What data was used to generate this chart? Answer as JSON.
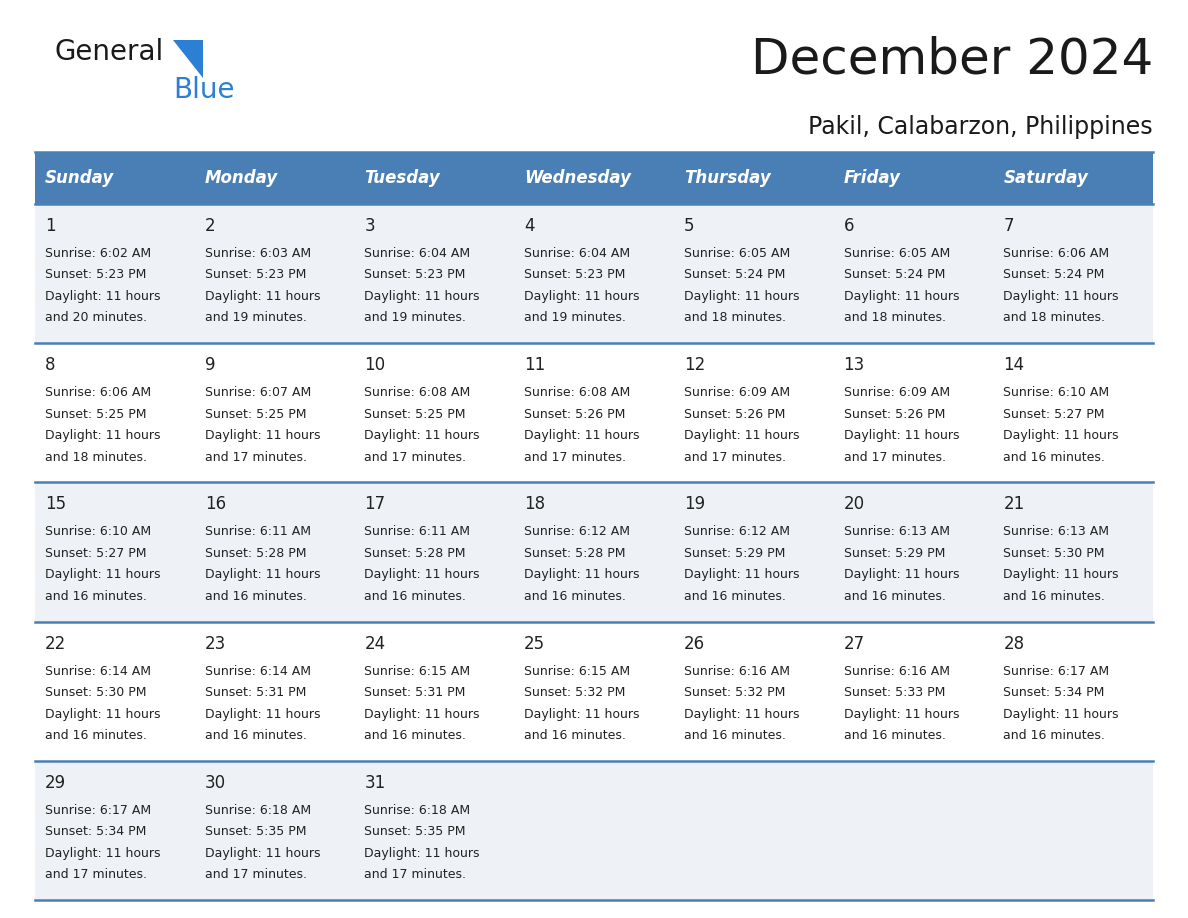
{
  "title": "December 2024",
  "subtitle": "Pakil, Calabarzon, Philippines",
  "header_color": "#4a7fb5",
  "header_text_color": "#ffffff",
  "row_odd_bg": "#eef2f7",
  "row_even_bg": "#ffffff",
  "border_color": "#4a7fb5",
  "text_color": "#222222",
  "days_of_week": [
    "Sunday",
    "Monday",
    "Tuesday",
    "Wednesday",
    "Thursday",
    "Friday",
    "Saturday"
  ],
  "weeks": [
    [
      {
        "day": "1",
        "sunrise": "6:02 AM",
        "sunset": "5:23 PM",
        "daylight_line1": "Daylight: 11 hours",
        "daylight_line2": "and 20 minutes."
      },
      {
        "day": "2",
        "sunrise": "6:03 AM",
        "sunset": "5:23 PM",
        "daylight_line1": "Daylight: 11 hours",
        "daylight_line2": "and 19 minutes."
      },
      {
        "day": "3",
        "sunrise": "6:04 AM",
        "sunset": "5:23 PM",
        "daylight_line1": "Daylight: 11 hours",
        "daylight_line2": "and 19 minutes."
      },
      {
        "day": "4",
        "sunrise": "6:04 AM",
        "sunset": "5:23 PM",
        "daylight_line1": "Daylight: 11 hours",
        "daylight_line2": "and 19 minutes."
      },
      {
        "day": "5",
        "sunrise": "6:05 AM",
        "sunset": "5:24 PM",
        "daylight_line1": "Daylight: 11 hours",
        "daylight_line2": "and 18 minutes."
      },
      {
        "day": "6",
        "sunrise": "6:05 AM",
        "sunset": "5:24 PM",
        "daylight_line1": "Daylight: 11 hours",
        "daylight_line2": "and 18 minutes."
      },
      {
        "day": "7",
        "sunrise": "6:06 AM",
        "sunset": "5:24 PM",
        "daylight_line1": "Daylight: 11 hours",
        "daylight_line2": "and 18 minutes."
      }
    ],
    [
      {
        "day": "8",
        "sunrise": "6:06 AM",
        "sunset": "5:25 PM",
        "daylight_line1": "Daylight: 11 hours",
        "daylight_line2": "and 18 minutes."
      },
      {
        "day": "9",
        "sunrise": "6:07 AM",
        "sunset": "5:25 PM",
        "daylight_line1": "Daylight: 11 hours",
        "daylight_line2": "and 17 minutes."
      },
      {
        "day": "10",
        "sunrise": "6:08 AM",
        "sunset": "5:25 PM",
        "daylight_line1": "Daylight: 11 hours",
        "daylight_line2": "and 17 minutes."
      },
      {
        "day": "11",
        "sunrise": "6:08 AM",
        "sunset": "5:26 PM",
        "daylight_line1": "Daylight: 11 hours",
        "daylight_line2": "and 17 minutes."
      },
      {
        "day": "12",
        "sunrise": "6:09 AM",
        "sunset": "5:26 PM",
        "daylight_line1": "Daylight: 11 hours",
        "daylight_line2": "and 17 minutes."
      },
      {
        "day": "13",
        "sunrise": "6:09 AM",
        "sunset": "5:26 PM",
        "daylight_line1": "Daylight: 11 hours",
        "daylight_line2": "and 17 minutes."
      },
      {
        "day": "14",
        "sunrise": "6:10 AM",
        "sunset": "5:27 PM",
        "daylight_line1": "Daylight: 11 hours",
        "daylight_line2": "and 16 minutes."
      }
    ],
    [
      {
        "day": "15",
        "sunrise": "6:10 AM",
        "sunset": "5:27 PM",
        "daylight_line1": "Daylight: 11 hours",
        "daylight_line2": "and 16 minutes."
      },
      {
        "day": "16",
        "sunrise": "6:11 AM",
        "sunset": "5:28 PM",
        "daylight_line1": "Daylight: 11 hours",
        "daylight_line2": "and 16 minutes."
      },
      {
        "day": "17",
        "sunrise": "6:11 AM",
        "sunset": "5:28 PM",
        "daylight_line1": "Daylight: 11 hours",
        "daylight_line2": "and 16 minutes."
      },
      {
        "day": "18",
        "sunrise": "6:12 AM",
        "sunset": "5:28 PM",
        "daylight_line1": "Daylight: 11 hours",
        "daylight_line2": "and 16 minutes."
      },
      {
        "day": "19",
        "sunrise": "6:12 AM",
        "sunset": "5:29 PM",
        "daylight_line1": "Daylight: 11 hours",
        "daylight_line2": "and 16 minutes."
      },
      {
        "day": "20",
        "sunrise": "6:13 AM",
        "sunset": "5:29 PM",
        "daylight_line1": "Daylight: 11 hours",
        "daylight_line2": "and 16 minutes."
      },
      {
        "day": "21",
        "sunrise": "6:13 AM",
        "sunset": "5:30 PM",
        "daylight_line1": "Daylight: 11 hours",
        "daylight_line2": "and 16 minutes."
      }
    ],
    [
      {
        "day": "22",
        "sunrise": "6:14 AM",
        "sunset": "5:30 PM",
        "daylight_line1": "Daylight: 11 hours",
        "daylight_line2": "and 16 minutes."
      },
      {
        "day": "23",
        "sunrise": "6:14 AM",
        "sunset": "5:31 PM",
        "daylight_line1": "Daylight: 11 hours",
        "daylight_line2": "and 16 minutes."
      },
      {
        "day": "24",
        "sunrise": "6:15 AM",
        "sunset": "5:31 PM",
        "daylight_line1": "Daylight: 11 hours",
        "daylight_line2": "and 16 minutes."
      },
      {
        "day": "25",
        "sunrise": "6:15 AM",
        "sunset": "5:32 PM",
        "daylight_line1": "Daylight: 11 hours",
        "daylight_line2": "and 16 minutes."
      },
      {
        "day": "26",
        "sunrise": "6:16 AM",
        "sunset": "5:32 PM",
        "daylight_line1": "Daylight: 11 hours",
        "daylight_line2": "and 16 minutes."
      },
      {
        "day": "27",
        "sunrise": "6:16 AM",
        "sunset": "5:33 PM",
        "daylight_line1": "Daylight: 11 hours",
        "daylight_line2": "and 16 minutes."
      },
      {
        "day": "28",
        "sunrise": "6:17 AM",
        "sunset": "5:34 PM",
        "daylight_line1": "Daylight: 11 hours",
        "daylight_line2": "and 16 minutes."
      }
    ],
    [
      {
        "day": "29",
        "sunrise": "6:17 AM",
        "sunset": "5:34 PM",
        "daylight_line1": "Daylight: 11 hours",
        "daylight_line2": "and 17 minutes."
      },
      {
        "day": "30",
        "sunrise": "6:18 AM",
        "sunset": "5:35 PM",
        "daylight_line1": "Daylight: 11 hours",
        "daylight_line2": "and 17 minutes."
      },
      {
        "day": "31",
        "sunrise": "6:18 AM",
        "sunset": "5:35 PM",
        "daylight_line1": "Daylight: 11 hours",
        "daylight_line2": "and 17 minutes."
      },
      null,
      null,
      null,
      null
    ]
  ],
  "logo_color_general": "#1a1a1a",
  "logo_color_blue": "#2b7fd4",
  "logo_triangle_color": "#2b7fd4",
  "title_fontsize": 36,
  "subtitle_fontsize": 17,
  "header_fontsize": 12,
  "day_num_fontsize": 12,
  "cell_text_fontsize": 9
}
